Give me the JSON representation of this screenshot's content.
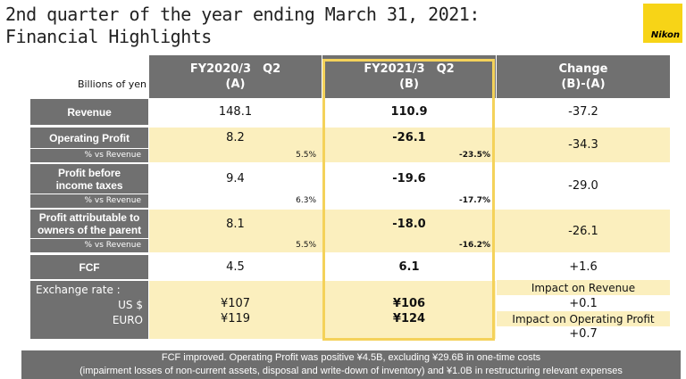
{
  "title": {
    "line1": "2nd quarter of the year ending March 31, 2021:",
    "line2": "Financial Highlights"
  },
  "logo": {
    "text": "Nikon",
    "color": "#f7d417"
  },
  "units": "Billions of yen",
  "columns": {
    "a_line1": "FY2020/3　Q2",
    "a_line2": "(A)",
    "b_line1": "FY2021/3　Q2",
    "b_line2": "(B)",
    "c_line1": "Change",
    "c_line2": "(B)-(A)"
  },
  "rows": {
    "revenue": {
      "label": "Revenue",
      "a": "148.1",
      "b": "110.9",
      "change": "-37.2"
    },
    "op": {
      "label": "Operating Profit",
      "sub": "% vs Revenue",
      "a": "8.2",
      "a_pct": "5.5%",
      "b": "-26.1",
      "b_pct": "-23.5%",
      "change": "-34.3"
    },
    "pbt": {
      "label_1": "Profit before",
      "label_2": "income taxes",
      "sub": "% vs Revenue",
      "a": "9.4",
      "a_pct": "6.3%",
      "b": "-19.6",
      "b_pct": "-17.7%",
      "change": "-29.0"
    },
    "pat": {
      "label_1": "Profit attributable to",
      "label_2": "owners of the parent",
      "sub": "% vs Revenue",
      "a": "8.1",
      "a_pct": "5.5%",
      "b": "-18.0",
      "b_pct": "-16.2%",
      "change": "-26.1"
    },
    "fcf": {
      "label": "FCF",
      "a": "4.5",
      "b": "6.1",
      "change": "+1.6"
    },
    "fx": {
      "label": "Exchange rate :",
      "usd": "US $",
      "euro": "EURO",
      "a_usd": "¥107",
      "a_euro": "¥119",
      "b_usd": "¥106",
      "b_euro": "¥124",
      "impact_rev_label": "Impact on Revenue",
      "impact_rev": "+0.1",
      "impact_op_label": "Impact on Operating Profit",
      "impact_op": "+0.7"
    }
  },
  "footnote": {
    "line1": "FCF improved. Operating Profit was positive ¥4.5B, excluding ¥29.6B in one-time costs",
    "line2": "(impairment losses of non-current assets, disposal and write-down of inventory) and ¥1.0B in restructuring relevant expenses"
  },
  "colors": {
    "highlight_border": "#f4d25a",
    "row_highlight": "#fbefbe",
    "label_bg": "#707070"
  }
}
